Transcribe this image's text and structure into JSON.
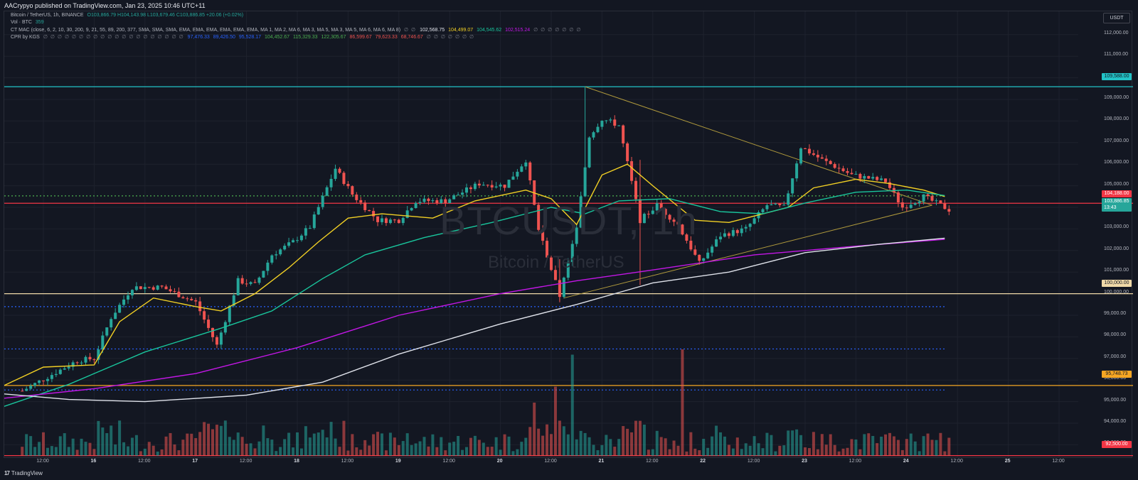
{
  "header": {
    "published": "AACrypyo published on TradingView.com, Jan 23, 2025 10:46 UTC+11"
  },
  "legend": {
    "symbol": "Bitcoin / TetherUS, 1h, BINANCE",
    "ohlc": "O103,866.79 H104,143.98 L103,679.46 C103,886.85 +20.06 (+0.02%)",
    "vol_label": "Vol · BTC",
    "vol_value": "359",
    "mac_label": "CT MAC (close, 6, 2, 10, 30, 200, 9, 21, 55, 89, 200, 377, SMA, SMA, SMA, EMA, EMA, EMA, EMA, EMA, EMA, MA 1, MA 2, MA 6, MA 3, MA 5, MA 3, MA 5, MA 6, MA 6, MA 8)",
    "mac_dots": "∅ ∅",
    "mac_values": [
      "102,568.75",
      "104,499.07",
      "104,545.62",
      "102,515.24"
    ],
    "mac_tail": "∅ ∅ ∅ ∅ ∅ ∅ ∅",
    "cpr_label": "CPR by KGS",
    "cpr_dots": "∅ ∅ ∅ ∅ ∅ ∅ ∅ ∅ ∅ ∅ ∅ ∅ ∅ ∅ ∅ ∅ ∅ ∅ ∅ ∅",
    "cpr_values": [
      "97,476.33",
      "89,426.50",
      "95,528.17",
      "104,452.67",
      "115,329.33",
      "122,305.67",
      "86,599.67",
      "79,623.33",
      "68,746.67"
    ],
    "cpr_tail": "∅ ∅ ∅ ∅ ∅ ∅ ∅"
  },
  "watermark": {
    "ticker": "BTCUSDT, 1h",
    "name": "Bitcoin / TetherUS"
  },
  "currency": "USDT",
  "price_axis": {
    "ticks": [
      "112,000.00",
      "111,000.00",
      "110,000.00",
      "109,000.00",
      "108,000.00",
      "107,000.00",
      "106,000.00",
      "105,000.00",
      "104,000.00",
      "103,000.00",
      "102,000.00",
      "101,000.00",
      "100,000.00",
      "99,000.00",
      "98,000.00",
      "97,000.00",
      "96,000.00",
      "95,000.00",
      "94,000.00",
      "93,000.00"
    ],
    "labels": {
      "resistance": "109,588.00",
      "redline": "104,188.00",
      "last": "103,886.85",
      "countdown": "13:43",
      "round": "100,000.00",
      "orange": "95,748.73",
      "bottom": "92,500.00"
    }
  },
  "time_axis": [
    "12:00",
    "16",
    "12:00",
    "17",
    "12:00",
    "18",
    "12:00",
    "19",
    "12:00",
    "20",
    "12:00",
    "21",
    "12:00",
    "22",
    "12:00",
    "23",
    "12:00",
    "24",
    "12:00",
    "25",
    "12:00"
  ],
  "footer": {
    "brand": "TradingView",
    "logo": "17"
  },
  "colors": {
    "bg": "#131722",
    "up": "#26a69a",
    "down": "#ef5350",
    "cyan": "#22c3c7",
    "red_line": "#f23645",
    "cream": "#f0d9a8",
    "orange": "#f5a623",
    "blue_dots": "#2962ff",
    "green_dots": "#4caf50",
    "yellow_ma": "#f2d024",
    "teal_ma": "#19c59c",
    "purple_ma": "#c317e6",
    "white_ma": "#e0e3eb",
    "triangle": "#b09a3c"
  },
  "chart_data": {
    "type": "candlestick",
    "symbol": "BTCUSDT",
    "timeframe": "1h",
    "ylim": [
      92500,
      112300
    ],
    "levels": [
      {
        "price": 109588,
        "style": "solid",
        "color": "#22c3c7"
      },
      {
        "price": 104188,
        "style": "solid",
        "color": "#f23645"
      },
      {
        "price": 104530,
        "style": "dotted",
        "color": "#4caf50"
      },
      {
        "price": 100000,
        "style": "solid",
        "color": "#f0d9a8"
      },
      {
        "price": 99400,
        "style": "dotted",
        "color": "#2962ff"
      },
      {
        "price": 97440,
        "style": "dotted",
        "color": "#2962ff"
      },
      {
        "price": 95748.73,
        "style": "solid",
        "color": "#f5a623"
      },
      {
        "price": 95540,
        "style": "dotted",
        "color": "#2962ff"
      },
      {
        "price": 92500,
        "style": "solid",
        "color": "#f23645"
      }
    ],
    "trendlines": [
      {
        "from": [
          "Jan 20 20:00",
          109588
        ],
        "to": [
          "Jan 24 06:00",
          104100
        ]
      },
      {
        "from": [
          "Jan 20 15:00",
          99800
        ],
        "to": [
          "Jan 24 06:00",
          104100
        ]
      }
    ],
    "anchor_points": [
      [
        "Jan 15 07:00",
        95500
      ],
      [
        "Jan 15 20:00",
        96900
      ],
      [
        "Jan 16 00:00",
        97000
      ],
      [
        "Jan 16 04:00",
        98900
      ],
      [
        "Jan 16 09:00",
        100300
      ],
      [
        "Jan 16 16:00",
        100300
      ],
      [
        "Jan 17 00:00",
        99600
      ],
      [
        "Jan 17 05:00",
        97600
      ],
      [
        "Jan 17 10:00",
        100600
      ],
      [
        "Jan 17 14:00",
        100400
      ],
      [
        "Jan 17 18:00",
        101800
      ],
      [
        "Jan 17 23:00",
        102400
      ],
      [
        "Jan 18 03:00",
        103100
      ],
      [
        "Jan 18 09:00",
        105800
      ],
      [
        "Jan 18 13:00",
        104600
      ],
      [
        "Jan 18 19:00",
        103400
      ],
      [
        "Jan 19 00:00",
        103400
      ],
      [
        "Jan 19 04:00",
        104300
      ],
      [
        "Jan 19 11:00",
        104300
      ],
      [
        "Jan 19 19:00",
        105100
      ],
      [
        "Jan 20 01:00",
        105000
      ],
      [
        "Jan 20 06:00",
        106200
      ],
      [
        "Jan 20 09:00",
        103000
      ],
      [
        "Jan 20 14:00",
        99900
      ],
      [
        "Jan 20 18:00",
        103000
      ],
      [
        "Jan 20 21:00",
        107300
      ],
      [
        "Jan 21 00:00",
        108100
      ],
      [
        "Jan 21 04:00",
        107800
      ],
      [
        "Jan 21 09:00",
        103400
      ],
      [
        "Jan 21 13:00",
        104100
      ],
      [
        "Jan 21 18:00",
        103200
      ],
      [
        "Jan 21 23:00",
        101400
      ],
      [
        "Jan 22 04:00",
        102700
      ],
      [
        "Jan 22 10:00",
        103000
      ],
      [
        "Jan 22 15:00",
        104100
      ],
      [
        "Jan 22 19:00",
        104000
      ],
      [
        "Jan 22 23:00",
        106800
      ],
      [
        "Jan 23 04:00",
        106200
      ],
      [
        "Jan 23 11:00",
        105500
      ],
      [
        "Jan 23 19:00",
        105200
      ],
      [
        "Jan 23 23:00",
        104000
      ],
      [
        "Jan 24 04:00",
        104500
      ],
      [
        "Jan 24 10:00",
        103887
      ]
    ],
    "volume_spikes": [
      [
        "Jan 20 17:00",
        0.95
      ],
      [
        "Jan 21 19:00",
        1.0
      ],
      [
        "Jan 20 13:00",
        0.65
      ],
      [
        "Jan 20 08:00",
        0.5
      ]
    ],
    "moving_averages": [
      {
        "name": "MA 1",
        "color": "#f2d024",
        "last": 104499.07,
        "points": [
          [
            "Jan 15 00:00",
            95500
          ],
          [
            "Jan 15 12:00",
            96600
          ],
          [
            "Jan 16 00:00",
            96700
          ],
          [
            "Jan 16 06:00",
            98700
          ],
          [
            "Jan 16 14:00",
            99800
          ],
          [
            "Jan 17 00:00",
            99400
          ],
          [
            "Jan 17 06:00",
            99200
          ],
          [
            "Jan 17 14:00",
            100000
          ],
          [
            "Jan 17 22:00",
            101200
          ],
          [
            "Jan 18 05:00",
            102400
          ],
          [
            "Jan 18 12:00",
            103500
          ],
          [
            "Jan 18 20:00",
            103700
          ],
          [
            "Jan 19 08:00",
            103500
          ],
          [
            "Jan 19 18:00",
            104300
          ],
          [
            "Jan 20 06:00",
            104800
          ],
          [
            "Jan 20 12:00",
            104400
          ],
          [
            "Jan 20 18:00",
            103200
          ],
          [
            "Jan 21 00:00",
            105500
          ],
          [
            "Jan 21 06:00",
            106000
          ],
          [
            "Jan 21 12:00",
            105000
          ],
          [
            "Jan 21 22:00",
            103400
          ],
          [
            "Jan 22 06:00",
            103300
          ],
          [
            "Jan 22 12:00",
            103600
          ],
          [
            "Jan 22 20:00",
            104000
          ],
          [
            "Jan 23 02:00",
            104900
          ],
          [
            "Jan 23 12:00",
            105300
          ],
          [
            "Jan 23 20:00",
            105100
          ],
          [
            "Jan 24 04:00",
            104800
          ],
          [
            "Jan 24 09:00",
            104499
          ]
        ]
      },
      {
        "name": "MA 2",
        "color": "#19c59c",
        "last": 104545.62,
        "points": [
          [
            "Jan 15 00:00",
            94600
          ],
          [
            "Jan 15 18:00",
            95800
          ],
          [
            "Jan 16 12:00",
            97300
          ],
          [
            "Jan 17 06:00",
            98400
          ],
          [
            "Jan 17 18:00",
            99200
          ],
          [
            "Jan 18 06:00",
            100700
          ],
          [
            "Jan 18 16:00",
            101800
          ],
          [
            "Jan 19 06:00",
            102600
          ],
          [
            "Jan 19 22:00",
            103300
          ],
          [
            "Jan 20 12:00",
            104000
          ],
          [
            "Jan 20 20:00",
            103700
          ],
          [
            "Jan 21 04:00",
            104300
          ],
          [
            "Jan 21 16:00",
            104400
          ],
          [
            "Jan 22 04:00",
            103800
          ],
          [
            "Jan 22 14:00",
            103700
          ],
          [
            "Jan 23 00:00",
            104200
          ],
          [
            "Jan 23 12:00",
            104700
          ],
          [
            "Jan 24 00:00",
            104800
          ],
          [
            "Jan 24 09:00",
            104546
          ]
        ]
      },
      {
        "name": "MA 3",
        "color": "#c317e6",
        "last": 102515.24,
        "points": [
          [
            "Jan 15 00:00",
            95100
          ],
          [
            "Jan 16 00:00",
            95600
          ],
          [
            "Jan 17 00:00",
            96300
          ],
          [
            "Jan 18 00:00",
            97500
          ],
          [
            "Jan 19 00:00",
            99000
          ],
          [
            "Jan 20 00:00",
            100000
          ],
          [
            "Jan 20 18:00",
            100600
          ],
          [
            "Jan 21 12:00",
            101100
          ],
          [
            "Jan 22 12:00",
            101800
          ],
          [
            "Jan 23 12:00",
            102200
          ],
          [
            "Jan 24 09:00",
            102515
          ]
        ]
      },
      {
        "name": "MA 4",
        "color": "#e0e3eb",
        "last": 102568.75,
        "points": [
          [
            "Jan 15 00:00",
            95400
          ],
          [
            "Jan 15 18:00",
            95100
          ],
          [
            "Jan 16 12:00",
            95000
          ],
          [
            "Jan 17 12:00",
            95300
          ],
          [
            "Jan 18 06:00",
            95900
          ],
          [
            "Jan 19 00:00",
            97200
          ],
          [
            "Jan 20 00:00",
            98600
          ],
          [
            "Jan 20 18:00",
            99500
          ],
          [
            "Jan 21 12:00",
            100500
          ],
          [
            "Jan 22 06:00",
            101000
          ],
          [
            "Jan 23 00:00",
            101900
          ],
          [
            "Jan 23 18:00",
            102300
          ],
          [
            "Jan 24 09:00",
            102569
          ]
        ]
      }
    ]
  }
}
